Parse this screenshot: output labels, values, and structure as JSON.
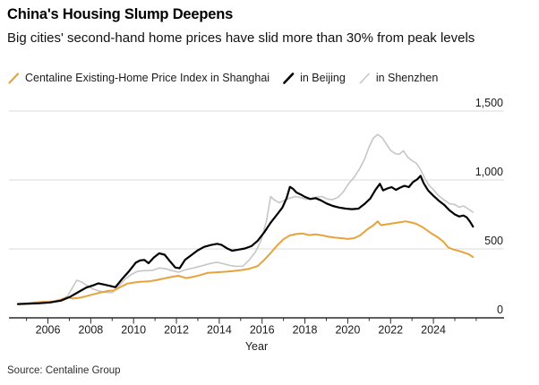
{
  "header": {
    "title": "China's Housing Slump Deepens",
    "subtitle": "Big cities' second-hand home prices have slid more than 30% from peak levels"
  },
  "legend": {
    "items": [
      {
        "label": "Centaline Existing-Home Price Index in Shanghai",
        "color": "#E9A23B",
        "marker": "slash-icon",
        "marker_stroke_width": 2.2
      },
      {
        "label": "in Beijing",
        "color": "#000000",
        "marker": "slash-icon",
        "marker_stroke_width": 2.6
      },
      {
        "label": "in Shenzhen",
        "color": "#C6C6C6",
        "marker": "slash-icon",
        "marker_stroke_width": 1.6
      }
    ]
  },
  "footer": {
    "source": "Source: Centaline Group"
  },
  "chart_data": {
    "type": "line",
    "title": "China's Housing Slump Deepens",
    "subtitle": "Big cities' second-hand home prices have slid more than 30% from peak levels",
    "xlabel": "Year",
    "ylabel": "",
    "xlim": [
      2004.18,
      2027.3
    ],
    "ylim": [
      0,
      1500
    ],
    "grid": "horizontal",
    "legend_position": "top",
    "y_ticks": [
      0,
      500,
      1000,
      1500
    ],
    "y_tick_labels": [
      "0",
      "500",
      "1,000",
      "1,500"
    ],
    "x_ticks_labeled": [
      2006,
      2008,
      2010,
      2012,
      2014,
      2016,
      2018,
      2020,
      2022,
      2024
    ],
    "x_ticks_minor": [
      2005,
      2006,
      2007,
      2008,
      2009,
      2010,
      2011,
      2012,
      2013,
      2014,
      2015,
      2016,
      2017,
      2018,
      2019,
      2020,
      2021,
      2022,
      2023,
      2024,
      2025,
      2026
    ],
    "colors": {
      "grid": "#DBDBDB",
      "axis": "#2B2B2B",
      "tick_text": "#1A1A1A"
    },
    "series": [
      {
        "name": "Centaline Existing-Home Price Index in Shenzhen",
        "color": "#C6C6C6",
        "width": 1.6,
        "points": [
          [
            2004.6,
            100
          ],
          [
            2005.1,
            102
          ],
          [
            2005.6,
            105
          ],
          [
            2006.1,
            110
          ],
          [
            2006.5,
            122
          ],
          [
            2006.9,
            155
          ],
          [
            2007.15,
            220
          ],
          [
            2007.35,
            273
          ],
          [
            2007.6,
            258
          ],
          [
            2007.85,
            232
          ],
          [
            2008.1,
            210
          ],
          [
            2008.4,
            195
          ],
          [
            2008.7,
            185
          ],
          [
            2009.0,
            183
          ],
          [
            2009.3,
            230
          ],
          [
            2009.6,
            280
          ],
          [
            2009.9,
            315
          ],
          [
            2010.2,
            338
          ],
          [
            2010.5,
            342
          ],
          [
            2010.9,
            345
          ],
          [
            2011.2,
            362
          ],
          [
            2011.5,
            356
          ],
          [
            2011.8,
            342
          ],
          [
            2012.1,
            331
          ],
          [
            2012.45,
            350
          ],
          [
            2012.8,
            362
          ],
          [
            2013.2,
            378
          ],
          [
            2013.6,
            395
          ],
          [
            2013.9,
            403
          ],
          [
            2014.2,
            392
          ],
          [
            2014.5,
            380
          ],
          [
            2014.8,
            374
          ],
          [
            2015.1,
            375
          ],
          [
            2015.4,
            420
          ],
          [
            2015.7,
            480
          ],
          [
            2015.95,
            560
          ],
          [
            2016.2,
            700
          ],
          [
            2016.4,
            880
          ],
          [
            2016.55,
            858
          ],
          [
            2016.8,
            835
          ],
          [
            2017.05,
            852
          ],
          [
            2017.3,
            868
          ],
          [
            2017.55,
            880
          ],
          [
            2017.8,
            872
          ],
          [
            2018.05,
            860
          ],
          [
            2018.3,
            868
          ],
          [
            2018.55,
            876
          ],
          [
            2018.8,
            880
          ],
          [
            2019.05,
            862
          ],
          [
            2019.3,
            858
          ],
          [
            2019.55,
            875
          ],
          [
            2019.8,
            915
          ],
          [
            2020.05,
            975
          ],
          [
            2020.3,
            1020
          ],
          [
            2020.55,
            1080
          ],
          [
            2020.8,
            1155
          ],
          [
            2021.0,
            1240
          ],
          [
            2021.2,
            1305
          ],
          [
            2021.4,
            1330
          ],
          [
            2021.6,
            1308
          ],
          [
            2021.8,
            1262
          ],
          [
            2022.0,
            1215
          ],
          [
            2022.2,
            1192
          ],
          [
            2022.4,
            1186
          ],
          [
            2022.6,
            1212
          ],
          [
            2022.8,
            1165
          ],
          [
            2023.0,
            1140
          ],
          [
            2023.2,
            1122
          ],
          [
            2023.4,
            1075
          ],
          [
            2023.6,
            1010
          ],
          [
            2023.8,
            960
          ],
          [
            2024.0,
            930
          ],
          [
            2024.25,
            885
          ],
          [
            2024.5,
            855
          ],
          [
            2024.75,
            828
          ],
          [
            2025.0,
            822
          ],
          [
            2025.2,
            802
          ],
          [
            2025.4,
            812
          ],
          [
            2025.6,
            792
          ],
          [
            2025.85,
            766
          ]
        ]
      },
      {
        "name": "Centaline Existing-Home Price Index in Shanghai",
        "color": "#E9A23B",
        "width": 2.0,
        "points": [
          [
            2004.6,
            100
          ],
          [
            2005.0,
            104
          ],
          [
            2005.4,
            112
          ],
          [
            2005.8,
            116
          ],
          [
            2006.2,
            118
          ],
          [
            2006.6,
            132
          ],
          [
            2006.9,
            150
          ],
          [
            2007.15,
            140
          ],
          [
            2007.5,
            146
          ],
          [
            2007.8,
            158
          ],
          [
            2008.1,
            170
          ],
          [
            2008.4,
            182
          ],
          [
            2008.8,
            195
          ],
          [
            2009.1,
            200
          ],
          [
            2009.4,
            225
          ],
          [
            2009.7,
            248
          ],
          [
            2010.0,
            256
          ],
          [
            2010.3,
            262
          ],
          [
            2010.7,
            264
          ],
          [
            2011.0,
            272
          ],
          [
            2011.4,
            285
          ],
          [
            2011.8,
            298
          ],
          [
            2012.1,
            305
          ],
          [
            2012.45,
            288
          ],
          [
            2012.8,
            298
          ],
          [
            2013.1,
            310
          ],
          [
            2013.45,
            326
          ],
          [
            2013.8,
            330
          ],
          [
            2014.2,
            334
          ],
          [
            2014.6,
            338
          ],
          [
            2015.0,
            346
          ],
          [
            2015.4,
            356
          ],
          [
            2015.8,
            376
          ],
          [
            2016.1,
            420
          ],
          [
            2016.4,
            470
          ],
          [
            2016.7,
            525
          ],
          [
            2017.0,
            570
          ],
          [
            2017.3,
            598
          ],
          [
            2017.6,
            608
          ],
          [
            2017.9,
            612
          ],
          [
            2018.2,
            600
          ],
          [
            2018.5,
            606
          ],
          [
            2018.8,
            598
          ],
          [
            2019.1,
            588
          ],
          [
            2019.4,
            582
          ],
          [
            2019.7,
            578
          ],
          [
            2020.0,
            572
          ],
          [
            2020.3,
            578
          ],
          [
            2020.6,
            600
          ],
          [
            2020.9,
            640
          ],
          [
            2021.2,
            672
          ],
          [
            2021.4,
            700
          ],
          [
            2021.55,
            672
          ],
          [
            2021.8,
            678
          ],
          [
            2022.1,
            685
          ],
          [
            2022.4,
            692
          ],
          [
            2022.7,
            700
          ],
          [
            2022.95,
            692
          ],
          [
            2023.2,
            682
          ],
          [
            2023.45,
            662
          ],
          [
            2023.7,
            635
          ],
          [
            2023.95,
            608
          ],
          [
            2024.2,
            585
          ],
          [
            2024.45,
            555
          ],
          [
            2024.7,
            510
          ],
          [
            2024.95,
            495
          ],
          [
            2025.2,
            485
          ],
          [
            2025.45,
            472
          ],
          [
            2025.65,
            462
          ],
          [
            2025.85,
            440
          ]
        ]
      },
      {
        "name": "Centaline Existing-Home Price Index in Beijing",
        "color": "#000000",
        "width": 2.2,
        "points": [
          [
            2004.6,
            100
          ],
          [
            2005.1,
            103
          ],
          [
            2005.6,
            106
          ],
          [
            2006.1,
            112
          ],
          [
            2006.6,
            125
          ],
          [
            2007.0,
            150
          ],
          [
            2007.4,
            185
          ],
          [
            2007.8,
            220
          ],
          [
            2008.1,
            235
          ],
          [
            2008.35,
            250
          ],
          [
            2008.6,
            242
          ],
          [
            2008.9,
            232
          ],
          [
            2009.15,
            222
          ],
          [
            2009.45,
            280
          ],
          [
            2009.8,
            340
          ],
          [
            2010.1,
            400
          ],
          [
            2010.3,
            416
          ],
          [
            2010.5,
            420
          ],
          [
            2010.7,
            396
          ],
          [
            2010.95,
            438
          ],
          [
            2011.2,
            468
          ],
          [
            2011.45,
            458
          ],
          [
            2011.7,
            410
          ],
          [
            2011.95,
            365
          ],
          [
            2012.15,
            360
          ],
          [
            2012.4,
            420
          ],
          [
            2012.7,
            455
          ],
          [
            2013.0,
            490
          ],
          [
            2013.3,
            515
          ],
          [
            2013.6,
            528
          ],
          [
            2013.9,
            537
          ],
          [
            2014.1,
            530
          ],
          [
            2014.35,
            505
          ],
          [
            2014.6,
            487
          ],
          [
            2014.9,
            495
          ],
          [
            2015.2,
            503
          ],
          [
            2015.5,
            520
          ],
          [
            2015.8,
            560
          ],
          [
            2016.1,
            620
          ],
          [
            2016.4,
            690
          ],
          [
            2016.7,
            750
          ],
          [
            2016.95,
            800
          ],
          [
            2017.15,
            870
          ],
          [
            2017.3,
            950
          ],
          [
            2017.45,
            935
          ],
          [
            2017.6,
            910
          ],
          [
            2017.8,
            895
          ],
          [
            2018.0,
            877
          ],
          [
            2018.25,
            862
          ],
          [
            2018.5,
            868
          ],
          [
            2018.75,
            852
          ],
          [
            2019.0,
            830
          ],
          [
            2019.3,
            812
          ],
          [
            2019.6,
            800
          ],
          [
            2019.9,
            792
          ],
          [
            2020.2,
            788
          ],
          [
            2020.5,
            792
          ],
          [
            2020.8,
            828
          ],
          [
            2021.05,
            865
          ],
          [
            2021.3,
            930
          ],
          [
            2021.5,
            972
          ],
          [
            2021.65,
            925
          ],
          [
            2021.85,
            938
          ],
          [
            2022.05,
            948
          ],
          [
            2022.25,
            928
          ],
          [
            2022.45,
            945
          ],
          [
            2022.65,
            958
          ],
          [
            2022.85,
            948
          ],
          [
            2023.05,
            985
          ],
          [
            2023.25,
            1005
          ],
          [
            2023.4,
            1030
          ],
          [
            2023.55,
            975
          ],
          [
            2023.75,
            925
          ],
          [
            2024.0,
            885
          ],
          [
            2024.25,
            850
          ],
          [
            2024.5,
            820
          ],
          [
            2024.75,
            780
          ],
          [
            2025.0,
            750
          ],
          [
            2025.2,
            735
          ],
          [
            2025.4,
            742
          ],
          [
            2025.55,
            730
          ],
          [
            2025.7,
            700
          ],
          [
            2025.85,
            662
          ]
        ]
      }
    ]
  }
}
